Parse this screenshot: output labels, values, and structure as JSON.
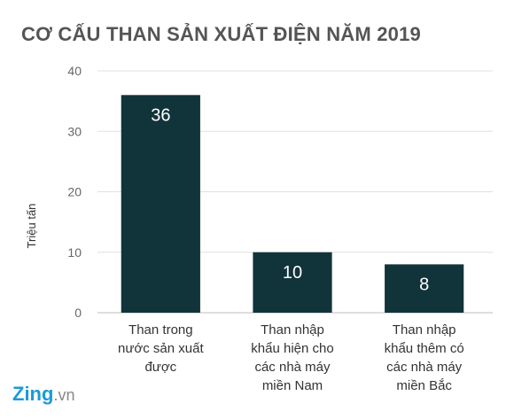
{
  "chart_data": {
    "type": "bar",
    "title": "CƠ CẤU THAN SẢN XUẤT ĐIỆN NĂM 2019",
    "ylabel": "Triệu tấn",
    "xlabel": "",
    "ylim": [
      0,
      40
    ],
    "yticks": [
      0,
      10,
      20,
      30,
      40
    ],
    "grid": true,
    "categories": [
      [
        "Than trong",
        "nước sản xuất",
        "được"
      ],
      [
        "Than nhập",
        "khẩu hiện cho",
        "các nhà máy",
        "miền Nam"
      ],
      [
        "Than nhập",
        "khẩu thêm có",
        "các nhà máy",
        "miền Bắc"
      ]
    ],
    "values": [
      36,
      10,
      8
    ],
    "data_labels": [
      "36",
      "10",
      "8"
    ],
    "bar_color": "#11343a"
  },
  "logo": {
    "main": "Zing",
    "suffix": ".vn"
  },
  "colors": {
    "grid": "#e0e0e0",
    "axis": "#bdbdbd",
    "title": "#555555",
    "logo": "#1a9bd7"
  }
}
